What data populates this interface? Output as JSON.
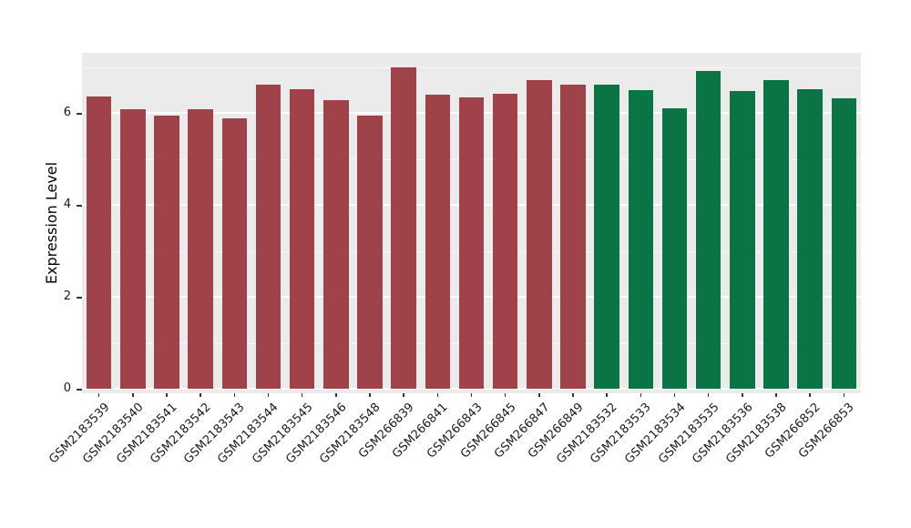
{
  "chart_data": {
    "type": "bar",
    "title": "",
    "xlabel": "",
    "ylabel": "Expression Level",
    "categories": [
      "GSM2183539",
      "GSM2183540",
      "GSM2183541",
      "GSM2183542",
      "GSM2183543",
      "GSM2183544",
      "GSM2183545",
      "GSM2183546",
      "GSM2183548",
      "GSM266839",
      "GSM266841",
      "GSM266843",
      "GSM266845",
      "GSM266847",
      "GSM266849",
      "GSM2183532",
      "GSM2183533",
      "GSM2183534",
      "GSM2183535",
      "GSM2183536",
      "GSM2183538",
      "GSM266852",
      "GSM266853"
    ],
    "values": [
      6.35,
      6.08,
      5.95,
      6.08,
      5.88,
      6.62,
      6.52,
      6.28,
      5.95,
      7.0,
      6.4,
      6.33,
      6.42,
      6.72,
      6.62,
      6.62,
      6.5,
      6.1,
      6.92,
      6.47,
      6.72,
      6.52,
      6.32
    ],
    "colors": [
      "#A0424A",
      "#A0424A",
      "#A0424A",
      "#A0424A",
      "#A0424A",
      "#A0424A",
      "#A0424A",
      "#A0424A",
      "#A0424A",
      "#A0424A",
      "#A0424A",
      "#A0424A",
      "#A0424A",
      "#A0424A",
      "#A0424A",
      "#0B7444",
      "#0B7444",
      "#0B7444",
      "#0B7444",
      "#0B7444",
      "#0B7444",
      "#0B7444",
      "#0B7444"
    ],
    "group_colors": {
      "group1": "#A0424A",
      "group2": "#0B7444"
    },
    "yticks_major": [
      0,
      2,
      4,
      6
    ],
    "yticks_minor": [
      1,
      3,
      5,
      7
    ],
    "ylim": [
      0,
      7.3
    ],
    "panel_background": "#EBEBEB",
    "grid_color": "#FFFFFF",
    "legend": "none",
    "grid": "on"
  }
}
